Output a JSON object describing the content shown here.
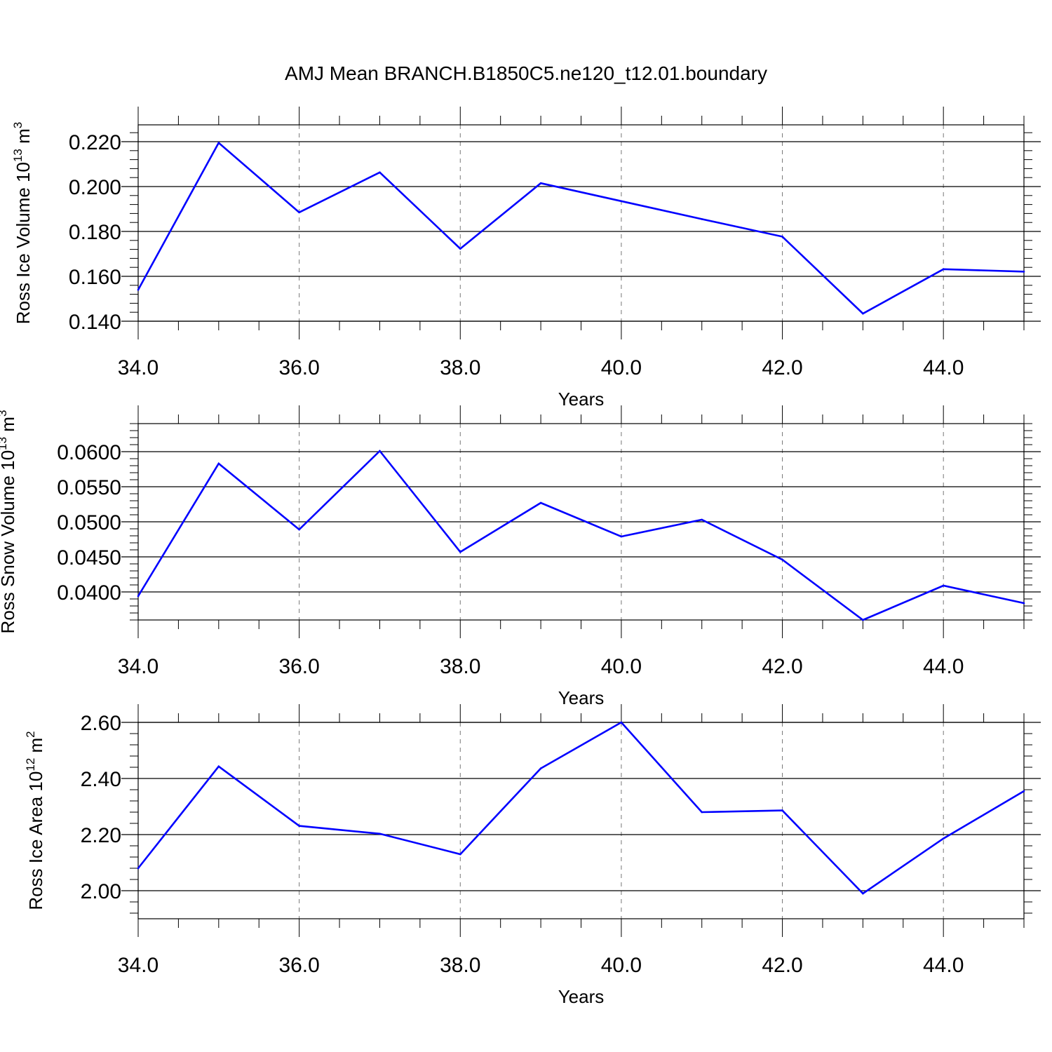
{
  "title": "AMJ Mean BRANCH.B1850C5.ne120_t12.01.boundary",
  "colors": {
    "line": "#0000ff",
    "axes": "#000000",
    "grid": "#777777",
    "background": "#ffffff"
  },
  "chart_data": [
    {
      "type": "line",
      "xlabel": "Years",
      "ylabel": {
        "text": "Ross Ice Volume 10",
        "exponent": "13",
        "unit": " m",
        "unit_exponent": "3"
      },
      "xlim": [
        34,
        45
      ],
      "ylim": [
        0.14,
        0.2275
      ],
      "x_ticks": [
        34,
        36,
        38,
        40,
        42,
        44
      ],
      "x_tick_labels": [
        "34.0",
        "36.0",
        "38.0",
        "40.0",
        "42.0",
        "44.0"
      ],
      "y_ticks": [
        0.14,
        0.16,
        0.18,
        0.2,
        0.22
      ],
      "y_tick_labels": [
        "0.140",
        "0.160",
        "0.180",
        "0.200",
        "0.220"
      ],
      "x": [
        34,
        35,
        36,
        37,
        38,
        39,
        40,
        41,
        42,
        43,
        44,
        45
      ],
      "values": [
        0.154,
        0.2195,
        0.1885,
        0.2063,
        0.1723,
        0.2015,
        0.1935,
        0.1855,
        0.1777,
        0.1434,
        0.1632,
        0.1621
      ],
      "grid": "vertical dashed at major x ticks"
    },
    {
      "type": "line",
      "xlabel": "Years",
      "ylabel": {
        "text": "Ross Snow Volume 10",
        "exponent": "13",
        "unit": " m",
        "unit_exponent": "3"
      },
      "xlim": [
        34,
        45
      ],
      "ylim": [
        0.036,
        0.064
      ],
      "x_ticks": [
        34,
        36,
        38,
        40,
        42,
        44
      ],
      "x_tick_labels": [
        "34.0",
        "36.0",
        "38.0",
        "40.0",
        "42.0",
        "44.0"
      ],
      "y_ticks": [
        0.04,
        0.045,
        0.05,
        0.055,
        0.06
      ],
      "y_tick_labels": [
        "0.0400",
        "0.0450",
        "0.0500",
        "0.0550",
        "0.0600"
      ],
      "x": [
        34,
        35,
        36,
        37,
        38,
        39,
        40,
        41,
        42,
        43,
        44,
        45
      ],
      "values": [
        0.0394,
        0.0583,
        0.0489,
        0.0601,
        0.0457,
        0.0527,
        0.0479,
        0.0503,
        0.0446,
        0.036,
        0.0409,
        0.0384
      ],
      "grid": "vertical dashed at major x ticks"
    },
    {
      "type": "line",
      "xlabel": "Years",
      "ylabel": {
        "text": "Ross Ice Area 10",
        "exponent": "12",
        "unit": " m",
        "unit_exponent": "2"
      },
      "xlim": [
        34,
        45
      ],
      "ylim": [
        1.9,
        2.6
      ],
      "x_ticks": [
        34,
        36,
        38,
        40,
        42,
        44
      ],
      "x_tick_labels": [
        "34.0",
        "36.0",
        "38.0",
        "40.0",
        "42.0",
        "44.0"
      ],
      "y_ticks": [
        2.0,
        2.2,
        2.4,
        2.6
      ],
      "y_tick_labels": [
        "2.00",
        "2.20",
        "2.40",
        "2.60"
      ],
      "x": [
        34,
        35,
        36,
        37,
        38,
        39,
        40,
        41,
        42,
        43,
        44,
        45
      ],
      "values": [
        2.08,
        2.443,
        2.231,
        2.203,
        2.13,
        2.436,
        2.6,
        2.28,
        2.286,
        1.99,
        2.186,
        2.355
      ],
      "grid": "vertical dashed at major x ticks"
    }
  ]
}
